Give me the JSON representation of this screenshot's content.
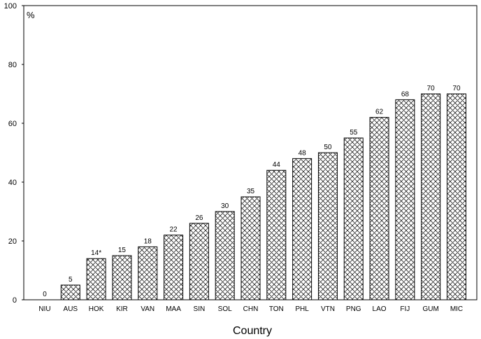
{
  "chart_data": {
    "type": "bar",
    "title": "",
    "xlabel": "Country",
    "ylabel": "%",
    "ylim": [
      0,
      100
    ],
    "yticks": [
      0,
      20,
      40,
      60,
      80,
      100
    ],
    "grid": false,
    "categories": [
      "NIU",
      "AUS",
      "HOK",
      "KIR",
      "VAN",
      "MAA",
      "SIN",
      "SOL",
      "CHN",
      "TON",
      "PHL",
      "VTN",
      "PNG",
      "LAO",
      "FIJ",
      "GUM",
      "MIC"
    ],
    "values": [
      0,
      5,
      14,
      15,
      18,
      22,
      26,
      30,
      35,
      44,
      48,
      50,
      55,
      62,
      68,
      70,
      70
    ],
    "data_labels": [
      "0",
      "5",
      "14*",
      "15",
      "18",
      "22",
      "26",
      "30",
      "35",
      "44",
      "48",
      "50",
      "55",
      "62",
      "68",
      "70",
      "70"
    ],
    "bar_fill": "crosshatch",
    "bar_color": "#000000"
  }
}
